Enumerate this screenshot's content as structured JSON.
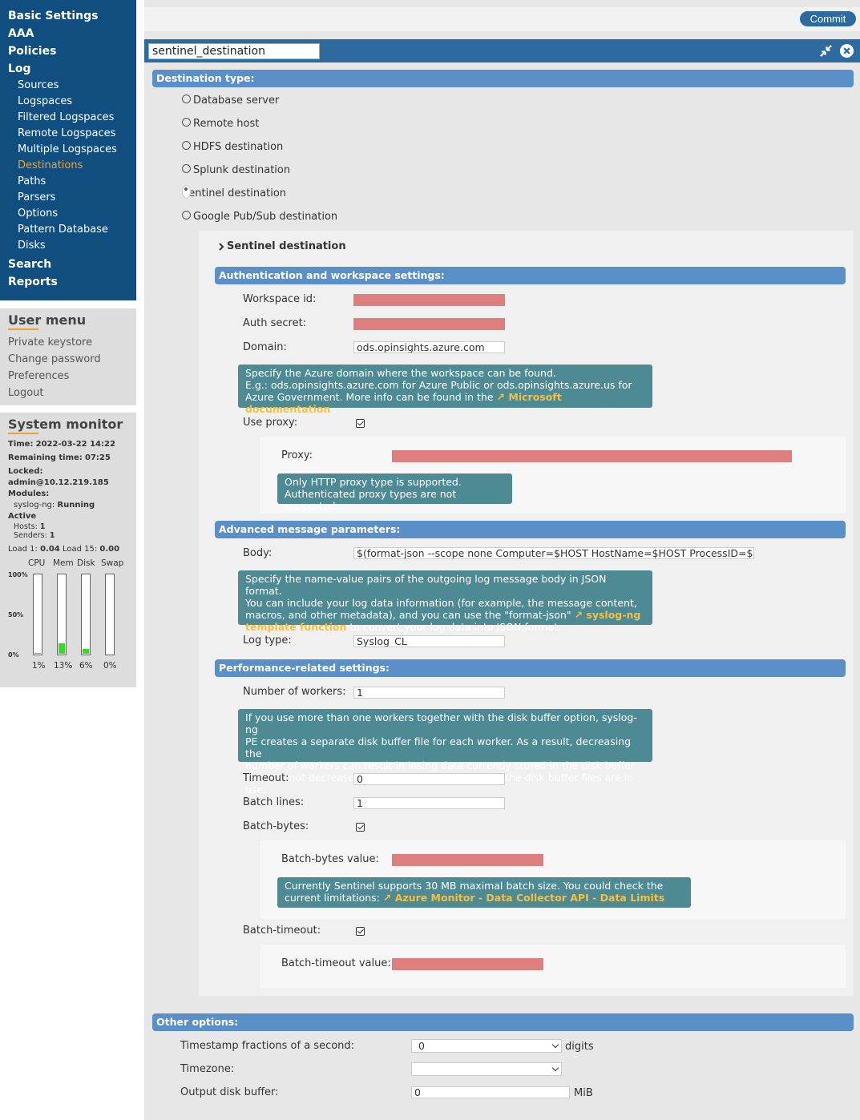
{
  "nav": {
    "items": [
      {
        "label": "Basic Settings"
      },
      {
        "label": "AAA"
      },
      {
        "label": "Policies"
      },
      {
        "label": "Log"
      }
    ],
    "log_items": [
      "Sources",
      "Logspaces",
      "Filtered Logspaces",
      "Remote Logspaces",
      "Multiple Logspaces",
      "Destinations",
      "Paths",
      "Parsers",
      "Options",
      "Pattern Database",
      "Disks"
    ],
    "bottom_items": [
      "Search",
      "Reports"
    ],
    "active": "Destinations"
  },
  "user_menu": {
    "title": "User menu",
    "items": [
      "Private keystore",
      "Change password",
      "Preferences",
      "Logout"
    ]
  },
  "system_monitor": {
    "title": "System monitor",
    "time_label": "Time:",
    "time": "2022-03-22 14:22",
    "remaining_label": "Remaining time:",
    "remaining": "07:25",
    "locked_label": "Locked:",
    "locked": "admin@10.12.219.185",
    "modules_label": "Modules:",
    "module_name": "syslog-ng:",
    "module_status": "Running",
    "active_label": "Active",
    "hosts_label": "Hosts:",
    "hosts": "1",
    "senders_label": "Senders:",
    "senders": "1",
    "load1_label": "Load 1:",
    "load1": "0.04",
    "load15_label": "Load 15:",
    "load15": "0.00",
    "meters": [
      {
        "label": "CPU",
        "pct": "1%",
        "value": 1
      },
      {
        "label": "Mem",
        "pct": "13%",
        "value": 13
      },
      {
        "label": "Disk",
        "pct": "6%",
        "value": 6
      },
      {
        "label": "Swap",
        "pct": "0%",
        "value": 0
      }
    ],
    "ticks": [
      "100%",
      "50%",
      "0%"
    ]
  },
  "toolbar": {
    "commit_label": "Commit"
  },
  "destination": {
    "name": "sentinel_destination",
    "type_header": "Destination type:",
    "types": [
      "Database server",
      "Remote host",
      "HDFS destination",
      "Splunk destination",
      "Sentinel destination",
      "Google Pub/Sub destination"
    ],
    "selected_type": "Sentinel destination"
  },
  "sentinel": {
    "title": "Sentinel destination",
    "auth_header": "Authentication and workspace settings:",
    "workspace_label": "Workspace id:",
    "auth_label": "Auth secret:",
    "domain_label": "Domain:",
    "domain_value": "ods.opinsights.azure.com",
    "domain_tip_1": "Specify the Azure domain where the workspace can be found.",
    "domain_tip_2": "E.g.: ods.opinsights.azure.com for Azure Public or ods.opinsights.azure.us for",
    "domain_tip_3": "Azure Government. More info can be found in the",
    "domain_tip_link": "Microsoft documentation",
    "domain_tip_end": ".",
    "use_proxy_label": "Use proxy:",
    "proxy_label": "Proxy:",
    "proxy_tip_1": "Only HTTP proxy type is supported.",
    "proxy_tip_2": "Authenticated proxy types are not supported.",
    "adv_header": "Advanced message parameters:",
    "body_label": "Body:",
    "body_value": "$(format-json --scope none Computer=$HOST HostName=$HOST ProcessID=$PID",
    "body_tip_1": "Specify the name-value pairs of the outgoing log message body in JSON format.",
    "body_tip_2": "You can include your log data information (for example, the message content,",
    "body_tip_3": "macros, and other metadata), and you can use the \"format-json\"",
    "body_tip_link_1": "syslog-ng",
    "body_tip_link_2": "template function",
    "body_tip_end": "to convert your log data into JSON format.",
    "logtype_label": "Log type:",
    "logtype_value": "Syslog_CL",
    "perf_header": "Performance-related settings:",
    "workers_label": "Number of workers:",
    "workers_value": "1",
    "workers_tip_1": "If you use more than one workers together with the disk buffer option, syslog-ng",
    "workers_tip_2": "PE creates a separate disk buffer file for each worker. As a result, decreasing the",
    "workers_tip_3": "number of workers can result in losing data currently stored in the disk buffer",
    "workers_tip_4": "files. Do not decrease the number of workers when the disk buffer files are in use.",
    "timeout_label": "Timeout:",
    "timeout_value": "0",
    "batch_lines_label": "Batch lines:",
    "batch_lines_value": "1",
    "batch_bytes_label": "Batch-bytes:",
    "batch_bytes_value_label": "Batch-bytes value:",
    "batch_tip_1": "Currently Sentinel supports 30 MB maximal batch size. You could check the",
    "batch_tip_2": "current limitations:",
    "batch_tip_link": "Azure Monitor - Data Collector API - Data Limits",
    "batch_timeout_label": "Batch-timeout:",
    "batch_timeout_value_label": "Batch-timeout value:"
  },
  "other": {
    "header": "Other options:",
    "ts_label": "Timestamp fractions of a second:",
    "ts_value": "0",
    "ts_unit": "digits",
    "tz_label": "Timezone:",
    "tz_value": "",
    "buffer_label": "Output disk buffer:",
    "buffer_value": "0",
    "buffer_unit": "MiB"
  }
}
